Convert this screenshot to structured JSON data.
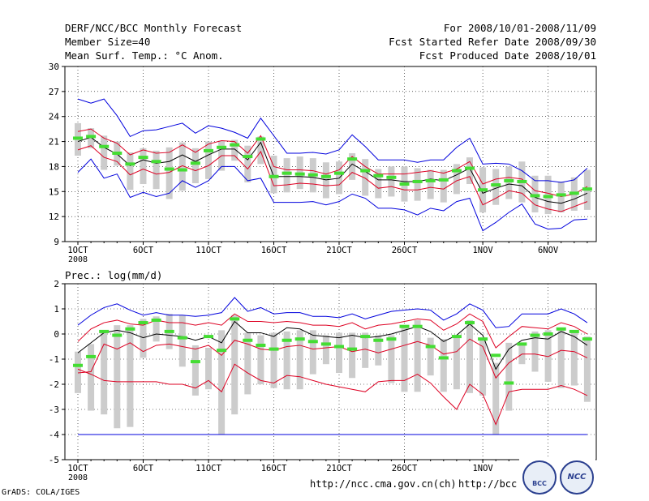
{
  "header": {
    "title": "DERF/NCC/BCC Monthly Forecast",
    "member_size": "Member Size=40",
    "variable": "Mean Surf. Temp.: °C Anom.",
    "period": "For 2008/10/01-2008/11/09",
    "started": "Fcst Started Refer Date 2008/09/30",
    "produced": "Fcst Produced Date 2008/10/01"
  },
  "footer": {
    "grads": "GrADS: COLA/IGES",
    "url1": "http://ncc.cma.gov.cn(ch)",
    "url2": "http://bcc.c",
    "logo1": "BCC",
    "logo2": "NCC"
  },
  "colors": {
    "box": "#cccccc",
    "median": "#44dd33",
    "mean": "#000000",
    "inner": "#dd0022",
    "outer": "#0000dd",
    "grid": "#000000"
  },
  "x_ticks": [
    "1OCT",
    "6OCT",
    "11OCT",
    "16OCT",
    "21OCT",
    "26OCT",
    "1NOV",
    "6NOV"
  ],
  "x_year": "2008",
  "chart_data": [
    {
      "type": "line",
      "title": "Mean Surf. Temp.: °C Anom.",
      "ylim": [
        9,
        30
      ],
      "yticks": [
        9,
        12,
        15,
        18,
        21,
        24,
        27,
        30
      ],
      "days": 40,
      "grid": "dotted",
      "series": [
        {
          "name": "max",
          "values": [
            26.1,
            25.6,
            26.1,
            24.1,
            21.6,
            22.3,
            22.4,
            22.8,
            23.2,
            22.0,
            22.9,
            22.6,
            22.1,
            21.4,
            23.8,
            21.7,
            19.6,
            19.6,
            19.7,
            19.5,
            20.0,
            21.8,
            20.4,
            18.8,
            18.8,
            18.8,
            18.5,
            18.8,
            18.8,
            20.3,
            21.4,
            18.3,
            18.4,
            18.3,
            17.5,
            16.3,
            16.3,
            16.1,
            16.4,
            17.8
          ]
        },
        {
          "name": "upper",
          "values": [
            22.2,
            22.5,
            21.4,
            20.8,
            19.4,
            20.0,
            19.6,
            19.7,
            20.6,
            19.7,
            20.7,
            21.1,
            21.0,
            19.6,
            21.7,
            18.0,
            17.6,
            17.6,
            17.5,
            17.1,
            17.6,
            19.2,
            18.0,
            17.1,
            17.1,
            17.1,
            17.3,
            17.5,
            17.2,
            17.7,
            18.6,
            15.9,
            16.5,
            16.7,
            16.5,
            15.1,
            14.8,
            14.4,
            14.7,
            15.6
          ]
        },
        {
          "name": "mean",
          "values": [
            21.0,
            21.5,
            20.3,
            19.5,
            18.1,
            18.8,
            18.4,
            18.6,
            19.4,
            18.6,
            19.4,
            20.1,
            20.1,
            18.8,
            20.9,
            16.8,
            16.8,
            16.8,
            16.7,
            16.4,
            16.6,
            18.3,
            17.4,
            16.4,
            16.4,
            16.2,
            16.2,
            16.5,
            16.3,
            17.0,
            17.8,
            14.8,
            15.4,
            15.9,
            15.7,
            14.3,
            13.8,
            13.6,
            14.1,
            14.8
          ]
        },
        {
          "name": "lower",
          "values": [
            20.0,
            20.5,
            19.1,
            18.6,
            17.0,
            17.7,
            17.1,
            17.3,
            18.1,
            17.5,
            18.1,
            19.3,
            19.3,
            17.7,
            19.8,
            15.7,
            15.8,
            16.0,
            15.9,
            15.7,
            15.8,
            17.3,
            16.6,
            15.4,
            15.6,
            15.2,
            15.2,
            15.5,
            15.3,
            16.3,
            16.8,
            13.4,
            14.2,
            15.1,
            14.8,
            13.4,
            12.9,
            12.6,
            13.2,
            13.8
          ]
        },
        {
          "name": "min",
          "values": [
            17.3,
            18.9,
            16.6,
            17.1,
            14.3,
            14.9,
            14.4,
            14.8,
            16.3,
            15.5,
            16.3,
            18.0,
            18.0,
            16.3,
            16.6,
            13.7,
            13.7,
            13.7,
            13.8,
            13.4,
            13.8,
            14.7,
            14.2,
            13.0,
            13.0,
            12.8,
            12.2,
            13.0,
            12.7,
            13.8,
            14.2,
            10.3,
            11.3,
            12.5,
            13.5,
            11.1,
            10.5,
            10.6,
            11.6,
            11.7
          ]
        },
        {
          "name": "box_high",
          "values": [
            23.2,
            22.6,
            21.7,
            21.0,
            19.7,
            20.2,
            19.9,
            20.3,
            20.9,
            20.2,
            21.0,
            21.1,
            21.2,
            20.5,
            21.6,
            19.3,
            19.0,
            19.2,
            19.0,
            18.5,
            18.6,
            19.6,
            18.9,
            17.7,
            18.0,
            18.0,
            17.8,
            17.6,
            17.6,
            18.3,
            19.1,
            17.9,
            17.7,
            18.0,
            18.6,
            16.9,
            16.9,
            16.2,
            16.7,
            17.6
          ]
        },
        {
          "name": "box_low",
          "values": [
            19.3,
            20.2,
            17.6,
            18.1,
            15.2,
            15.9,
            15.3,
            14.1,
            15.1,
            16.0,
            16.5,
            17.5,
            18.7,
            16.1,
            18.3,
            14.8,
            14.9,
            15.3,
            14.9,
            14.2,
            14.7,
            16.4,
            14.5,
            14.2,
            14.4,
            13.8,
            13.9,
            14.1,
            13.7,
            14.7,
            15.9,
            12.5,
            13.4,
            14.1,
            13.7,
            12.5,
            12.3,
            12.5,
            12.7,
            12.8
          ]
        },
        {
          "name": "median",
          "values": [
            21.4,
            21.6,
            20.4,
            19.6,
            18.3,
            19.1,
            18.6,
            17.7,
            17.6,
            18.4,
            19.9,
            20.3,
            20.6,
            19.2,
            21.3,
            16.8,
            17.2,
            17.1,
            17.0,
            16.8,
            17.2,
            18.9,
            17.5,
            16.9,
            16.7,
            15.9,
            16.2,
            16.3,
            16.4,
            17.5,
            17.8,
            15.2,
            15.8,
            16.3,
            16.2,
            14.5,
            14.4,
            14.6,
            14.8,
            15.3
          ]
        }
      ]
    },
    {
      "type": "line",
      "title": "Prec.: log(mm/d)",
      "ylim": [
        -5,
        2
      ],
      "yticks": [
        -5,
        -4,
        -3,
        -2,
        -1,
        0,
        1,
        2
      ],
      "days": 40,
      "grid": "dotted",
      "series": [
        {
          "name": "max",
          "values": [
            0.35,
            0.75,
            1.05,
            1.2,
            0.95,
            0.75,
            0.85,
            0.75,
            0.75,
            0.7,
            0.75,
            0.85,
            1.45,
            0.9,
            1.05,
            0.8,
            0.85,
            0.85,
            0.7,
            0.7,
            0.65,
            0.8,
            0.6,
            0.75,
            0.9,
            0.95,
            1.0,
            0.95,
            0.55,
            0.8,
            1.2,
            0.95,
            0.25,
            0.3,
            0.8,
            0.8,
            0.8,
            1.0,
            0.8,
            0.45
          ]
        },
        {
          "name": "upper",
          "values": [
            -0.3,
            0.2,
            0.45,
            0.55,
            0.4,
            0.35,
            0.55,
            0.45,
            0.45,
            0.35,
            0.45,
            0.35,
            0.8,
            0.5,
            0.5,
            0.45,
            0.5,
            0.45,
            0.35,
            0.35,
            0.3,
            0.45,
            0.2,
            0.35,
            0.4,
            0.5,
            0.6,
            0.55,
            0.15,
            0.4,
            0.8,
            0.5,
            -0.55,
            -0.1,
            0.3,
            0.25,
            0.2,
            0.45,
            0.3,
            0.0
          ]
        },
        {
          "name": "mean",
          "values": [
            -0.75,
            -0.35,
            0.05,
            0.15,
            0.05,
            -0.15,
            0.0,
            -0.05,
            -0.1,
            -0.25,
            -0.1,
            -0.35,
            0.5,
            0.05,
            0.05,
            -0.1,
            0.25,
            0.2,
            -0.05,
            -0.1,
            -0.15,
            -0.05,
            -0.15,
            -0.1,
            0.0,
            0.15,
            0.3,
            0.1,
            -0.3,
            -0.05,
            0.4,
            -0.05,
            -1.4,
            -0.6,
            -0.25,
            -0.15,
            -0.2,
            0.1,
            -0.1,
            -0.45
          ]
        },
        {
          "name": "lower",
          "values": [
            -1.55,
            -1.5,
            -0.4,
            -0.6,
            -0.35,
            -0.7,
            -0.45,
            -0.4,
            -0.5,
            -0.6,
            -0.45,
            -0.85,
            -0.25,
            -0.4,
            -0.6,
            -0.65,
            -0.5,
            -0.45,
            -0.6,
            -0.55,
            -0.5,
            -0.7,
            -0.6,
            -0.75,
            -0.6,
            -0.45,
            -0.3,
            -0.45,
            -0.8,
            -0.7,
            -0.2,
            -0.5,
            -1.75,
            -1.15,
            -0.8,
            -0.8,
            -0.9,
            -0.65,
            -0.7,
            -0.95
          ]
        },
        {
          "name": "min",
          "values": [
            -1.4,
            -1.6,
            -1.85,
            -1.9,
            -1.9,
            -1.9,
            -1.9,
            -2.0,
            -2.0,
            -2.15,
            -1.85,
            -2.3,
            -1.2,
            -1.55,
            -1.85,
            -1.95,
            -1.65,
            -1.7,
            -1.85,
            -2.0,
            -2.1,
            -2.2,
            -2.3,
            -1.9,
            -1.85,
            -1.85,
            -1.6,
            -1.95,
            -2.5,
            -3.0,
            -2.0,
            -2.4,
            -3.6,
            -2.3,
            -2.2,
            -2.2,
            -2.2,
            -2.05,
            -2.2,
            -2.45
          ]
        },
        {
          "name": "floor",
          "values": [
            -4.0,
            -4.0,
            -4.0,
            -4.0,
            -4.0,
            -4.0,
            -4.0,
            -4.0,
            -4.0,
            -4.0,
            -4.0,
            -4.0,
            -4.0,
            -4.0,
            -4.0,
            -4.0,
            -4.0,
            -4.0,
            -4.0,
            -4.0,
            -4.0,
            -4.0,
            -4.0,
            -4.0,
            -4.0,
            -4.0,
            -4.0,
            -4.0,
            -4.0,
            -4.0,
            -4.0,
            -4.0,
            -4.0,
            -4.0,
            -4.0,
            -4.0,
            -4.0,
            -4.0,
            -4.0,
            -4.0
          ]
        },
        {
          "name": "box_high",
          "values": [
            -0.7,
            -0.4,
            0.15,
            0.35,
            0.35,
            0.6,
            0.7,
            0.8,
            0.75,
            -0.45,
            -0.55,
            0.15,
            0.75,
            0.05,
            -0.05,
            0.05,
            0.1,
            0.15,
            0.15,
            -0.05,
            0.05,
            0.05,
            0.05,
            -0.05,
            -0.05,
            0.3,
            0.55,
            -0.15,
            -0.2,
            -0.05,
            0.55,
            -0.15,
            -1.15,
            -0.35,
            -0.35,
            0.1,
            0.15,
            0.15,
            0.15,
            -0.1
          ]
        },
        {
          "name": "box_low",
          "values": [
            -2.35,
            -3.05,
            -3.2,
            -3.75,
            -3.7,
            -0.95,
            -0.3,
            -0.6,
            -1.3,
            -2.45,
            -2.2,
            -4.0,
            -3.2,
            -2.4,
            -2.0,
            -2.15,
            -2.2,
            -2.2,
            -1.6,
            -1.2,
            -1.55,
            -1.75,
            -1.35,
            -1.25,
            -1.95,
            -2.3,
            -2.3,
            -1.65,
            -2.3,
            -2.2,
            -2.35,
            -2.45,
            -4.0,
            -3.05,
            -1.2,
            -1.5,
            -1.9,
            -2.15,
            -2.05,
            -2.7
          ]
        },
        {
          "name": "median",
          "values": [
            -1.25,
            -0.9,
            0.1,
            -0.05,
            0.2,
            0.45,
            0.55,
            0.1,
            -0.15,
            -1.1,
            -0.1,
            -0.65,
            0.6,
            -0.25,
            -0.45,
            -0.6,
            -0.25,
            -0.2,
            -0.3,
            -0.4,
            -0.5,
            -0.6,
            -0.1,
            -0.25,
            -0.2,
            0.3,
            0.3,
            -0.5,
            -0.95,
            -0.1,
            0.45,
            -0.2,
            -0.85,
            -1.95,
            -0.4,
            -0.05,
            0.0,
            0.2,
            0.1,
            -0.2
          ]
        }
      ]
    }
  ]
}
